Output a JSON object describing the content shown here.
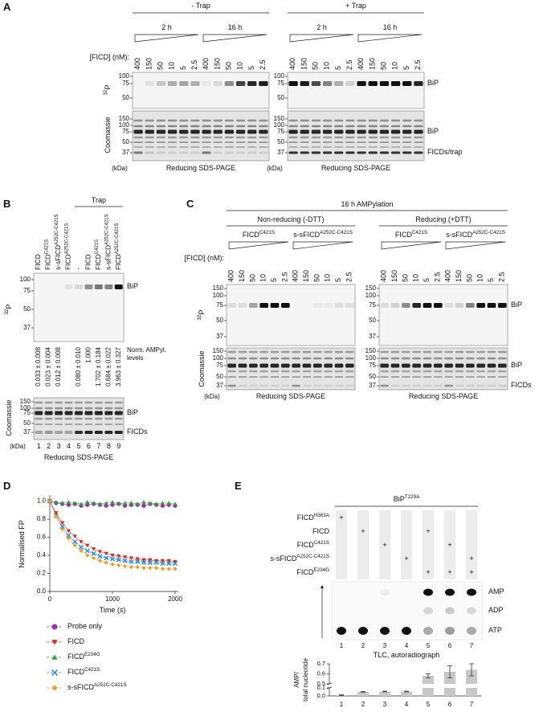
{
  "panels": {
    "A": {
      "letter": "A",
      "left": {
        "title": "- Trap"
      },
      "right": {
        "title": "+ Trap"
      },
      "times": [
        "2 h",
        "16 h"
      ],
      "conc_label": "[FICD] (nM):",
      "conc": [
        "400",
        "150",
        "50",
        "10",
        "5",
        "2.5"
      ],
      "autorad": [
        {
          "sup": "32"
        },
        "P"
      ],
      "stain": "Coomassie",
      "mw_autorad": [
        "100",
        "75",
        "50"
      ],
      "mw_stain": [
        "150",
        "100",
        "75",
        "50",
        "37"
      ],
      "kda": "(kDa)",
      "bip": "BiP",
      "trap_band": "FICDs/trap",
      "caption": "Reducing SDS-PAGE"
    },
    "B": {
      "letter": "B",
      "trap": "Trap",
      "lanes": [
        "FICD",
        [
          "FICD",
          {
            "sup": "C421S"
          }
        ],
        [
          "s-sFICD",
          {
            "sup": "A252C-C421S"
          }
        ],
        [
          "FICD",
          {
            "sup": "A252C-C421S"
          }
        ],
        "-",
        "FICD",
        [
          "FICD",
          {
            "sup": "C421S"
          }
        ],
        [
          "s-sFICD",
          {
            "sup": "A252C-C421S"
          }
        ],
        [
          "FICD",
          {
            "sup": "A252C-C421S"
          }
        ]
      ],
      "autorad": [
        {
          "sup": "32"
        },
        "P"
      ],
      "mw_autorad": [
        "100",
        "75",
        "50",
        "37"
      ],
      "levels_label": [
        "Norm. AMPyl.",
        "levels"
      ],
      "levels": [
        "0.033 ± 0.008",
        "0.023 ± 0.004",
        "0.012 ± 0.008",
        null,
        "0.080 ± 0.010",
        "1.000",
        "1.702 ± 0.184",
        "0.684 ± 0.022",
        "3.963 ± 0.327"
      ],
      "stain": "Coomassie",
      "mw_stain": [
        "150",
        "100",
        "75",
        "50",
        "37"
      ],
      "kda": "(kDa)",
      "lane_numbers": [
        "1",
        "2",
        "3",
        "4",
        "5",
        "6",
        "7",
        "8",
        "9"
      ],
      "bip": "BiP",
      "ficd_band": "FICDs",
      "caption": "Reducing SDS-PAGE"
    },
    "C": {
      "letter": "C",
      "title": "16 h AMPylation",
      "groups": [
        {
          "title": "Non-reducing (-DTT)"
        },
        {
          "title": "Reducing (+DTT)"
        }
      ],
      "proteins": [
        [
          "FICD",
          {
            "sup": "C421S"
          }
        ],
        [
          "s-sFICD",
          {
            "sup": "A252C-C421S"
          }
        ]
      ],
      "conc_label": "[FICD] (nM):",
      "conc": [
        "400",
        "150",
        "50",
        "10",
        "5",
        "2.5"
      ],
      "autorad": [
        {
          "sup": "32"
        },
        "P"
      ],
      "mw_autorad": [
        "150",
        "100",
        "75",
        "50",
        "37"
      ],
      "stain": "Coomassie",
      "mw_stain": [
        "150",
        "100",
        "75",
        "50",
        "37"
      ],
      "kda": "(kDa)",
      "bip": "BiP",
      "ficd_band": "FICDs",
      "caption": "Reducing SDS-PAGE"
    },
    "D": {
      "letter": "D",
      "chart": {
        "type": "scatter",
        "xlabel": "Time (s)",
        "ylabel": "Normalised FP",
        "x": [
          0,
          100,
          200,
          300,
          400,
          500,
          600,
          700,
          800,
          900,
          1000,
          1100,
          1200,
          1300,
          1400,
          1500,
          1600,
          1700,
          1800,
          1900,
          2000
        ],
        "xlim": [
          0,
          2000
        ],
        "xticks": [
          0,
          1000,
          2000
        ],
        "ylim": [
          0,
          1.05
        ],
        "yticks": [
          {
            "value": 0,
            "label": "0.0"
          },
          0.2,
          0.4,
          0.6,
          0.8,
          {
            "value": 1,
            "label": "1.0"
          }
        ],
        "series": [
          {
            "name": "Probe only",
            "color": "#9b30a8",
            "marker": "circle",
            "values": [
              1.0,
              0.98,
              0.97,
              0.96,
              0.97,
              0.95,
              0.96,
              0.97,
              0.96,
              0.95,
              0.96,
              0.97,
              0.95,
              0.96,
              0.96,
              0.95,
              0.97,
              0.96,
              0.95,
              0.96,
              0.95
            ]
          },
          {
            "name": "FICD",
            "color": "#d7261e",
            "marker": "triangle-down",
            "values": [
              1.0,
              0.87,
              0.76,
              0.67,
              0.61,
              0.55,
              0.51,
              0.47,
              0.44,
              0.42,
              0.4,
              0.39,
              0.38,
              0.37,
              0.36,
              0.35,
              0.35,
              0.34,
              0.34,
              0.34,
              0.33
            ]
          },
          {
            "name": [
              "FICD",
              {
                "sup": "E234G"
              }
            ],
            "color": "#2e9e3a",
            "marker": "triangle-up",
            "values": [
              1.0,
              0.99,
              0.98,
              0.99,
              0.98,
              0.97,
              0.99,
              0.98,
              0.97,
              0.98,
              0.99,
              0.97,
              0.98,
              0.98,
              0.97,
              0.99,
              0.98,
              0.97,
              0.98,
              0.98,
              0.97
            ]
          },
          {
            "name": [
              "FICD",
              {
                "sup": "C421S"
              }
            ],
            "color": "#2f8fd8",
            "marker": "x",
            "values": [
              1.0,
              0.84,
              0.72,
              0.62,
              0.55,
              0.49,
              0.45,
              0.42,
              0.39,
              0.37,
              0.36,
              0.35,
              0.34,
              0.33,
              0.33,
              0.32,
              0.32,
              0.32,
              0.31,
              0.31,
              0.31
            ]
          },
          {
            "name": [
              "s-sFICD",
              {
                "sup": "A252C-C421S"
              }
            ],
            "color": "#f39c1f",
            "marker": "diamond",
            "values": [
              1.0,
              0.83,
              0.69,
              0.59,
              0.51,
              0.45,
              0.4,
              0.37,
              0.34,
              0.32,
              0.3,
              0.29,
              0.28,
              0.27,
              0.27,
              0.26,
              0.26,
              0.26,
              0.25,
              0.25,
              0.25
            ]
          }
        ]
      }
    },
    "E": {
      "letter": "E",
      "header": [
        "BiP",
        {
          "sup": "T229A"
        }
      ],
      "rows": [
        {
          "label": [
            "FICD",
            {
              "sup": "H363A"
            }
          ],
          "marks": [
            "+",
            null,
            null,
            null,
            null,
            null,
            null
          ]
        },
        {
          "label": "FICD",
          "marks": [
            null,
            "+",
            null,
            null,
            "+",
            null,
            null
          ]
        },
        {
          "label": [
            "FICD",
            {
              "sup": "C421S"
            }
          ],
          "marks": [
            null,
            null,
            "+",
            null,
            null,
            "+",
            null
          ]
        },
        {
          "label": [
            "s-sFICD",
            {
              "sup": "A252C-C421S"
            }
          ],
          "marks": [
            null,
            null,
            null,
            "+",
            null,
            null,
            "+"
          ]
        },
        {
          "label": [
            "FICD",
            {
              "sup": "E234G"
            }
          ],
          "marks": [
            null,
            null,
            null,
            null,
            "+",
            "+",
            "+"
          ]
        }
      ],
      "spots": [
        "AMP",
        "ADP",
        "ATP"
      ],
      "lanes": [
        "1",
        "2",
        "3",
        "4",
        "5",
        "6",
        "7"
      ],
      "caption": "TLC, autoradiograph",
      "chart": {
        "type": "bar",
        "ylabel": [
          "AMP/",
          "total nucleotide"
        ],
        "categories": [
          "1",
          "2",
          "3",
          "4",
          "5",
          "6",
          "7"
        ],
        "values": [
          0.01,
          0.05,
          0.055,
          0.055,
          0.58,
          0.62,
          0.64
        ],
        "errors": [
          0.005,
          0.005,
          0.005,
          0.005,
          0.02,
          0.06,
          0.06
        ],
        "color": "#c8c8c8",
        "ylim": [
          0,
          0.7
        ],
        "axis_break": [
          0.1,
          0.5
        ],
        "yticks": [
          {
            "value": 0,
            "label": "0.0"
          },
          0.1,
          0.5,
          0.6,
          0.7
        ]
      }
    }
  }
}
